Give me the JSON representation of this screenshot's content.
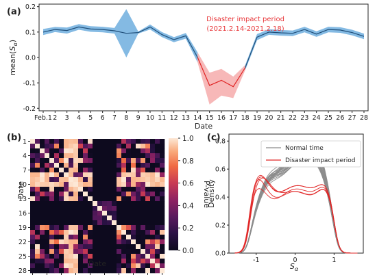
{
  "colors": {
    "normal_line": "#1f4e79",
    "normal_band": "#5ba3d9",
    "disaster_line": "#e02424",
    "disaster_band": "#f4a0a0",
    "density_normal": "#8c8c8c",
    "density_disaster": "#e02424",
    "heat_low": "#0d0a1e",
    "heat_high": "#fde8d6"
  },
  "chart_data": [
    {
      "panel": "(a)",
      "type": "line",
      "xlabel": "Date",
      "ylabel": "mean(Sα)",
      "ylim": [
        -0.21,
        0.21
      ],
      "yticks": [
        "-0.2",
        "-0.1",
        "0.0",
        "0.1",
        "0.2"
      ],
      "ytick_values": [
        -0.2,
        -0.1,
        0.0,
        0.1,
        0.2
      ],
      "categories": [
        "Feb.1",
        "2",
        "3",
        "4",
        "5",
        "6",
        "7",
        "8",
        "9",
        "10",
        "11",
        "12",
        "13",
        "14",
        "15",
        "16",
        "17",
        "18",
        "19",
        "20",
        "21",
        "22",
        "23",
        "24",
        "25",
        "26",
        "27",
        "28"
      ],
      "series": [
        {
          "mean": [
            0.1,
            0.11,
            0.106,
            0.12,
            0.112,
            0.11,
            0.105,
            0.095,
            0.098,
            0.12,
            0.09,
            0.07,
            0.085,
            0.0,
            -0.11,
            -0.09,
            -0.115,
            -0.04,
            0.08,
            0.1,
            0.097,
            0.095,
            0.11,
            0.092,
            0.11,
            0.108,
            0.098,
            0.083
          ],
          "lower": [
            0.088,
            0.1,
            0.094,
            0.109,
            0.101,
            0.099,
            0.094,
            0.0,
            0.094,
            0.11,
            0.08,
            0.06,
            0.074,
            -0.02,
            -0.185,
            -0.15,
            -0.16,
            -0.05,
            0.068,
            0.089,
            0.086,
            0.084,
            0.099,
            0.081,
            0.099,
            0.097,
            0.087,
            0.072
          ],
          "upper": [
            0.112,
            0.12,
            0.118,
            0.131,
            0.123,
            0.121,
            0.116,
            0.19,
            0.102,
            0.13,
            0.1,
            0.08,
            0.096,
            0.02,
            -0.06,
            -0.045,
            -0.075,
            -0.03,
            0.092,
            0.111,
            0.108,
            0.106,
            0.121,
            0.103,
            0.121,
            0.119,
            0.109,
            0.094
          ]
        }
      ],
      "highlight_range": [
        "14",
        "18"
      ],
      "annotation": [
        "Disaster impact period",
        "(2021.2.14-2021.2.18)"
      ]
    },
    {
      "panel": "(b)",
      "type": "heatmap",
      "xlabel": "Date",
      "ylabel": "Date",
      "x_ticks": [
        "1",
        "4",
        "7",
        "10",
        "13",
        "16",
        "19",
        "22",
        "25",
        "28"
      ],
      "y_ticks": [
        "1",
        "4",
        "7",
        "10",
        "13",
        "16",
        "19",
        "22",
        "25",
        "28"
      ],
      "size": 28,
      "colorbar_label": "P-value",
      "colorbar_ticks": [
        "0.0",
        "0.2",
        "0.4",
        "0.6",
        "0.8",
        "1.0"
      ],
      "vmin": 0,
      "vmax": 1,
      "disaster_days": [
        14,
        15,
        16,
        17,
        18
      ]
    },
    {
      "panel": "(c)",
      "type": "line",
      "xlabel": "Sα",
      "ylabel": "Density",
      "xlim": [
        -1.7,
        1.75
      ],
      "ylim": [
        0,
        0.85
      ],
      "xticks": [
        "-1",
        "0",
        "1"
      ],
      "xtick_values": [
        -1,
        0,
        1
      ],
      "yticks": [
        "0.0",
        "0.2",
        "0.4",
        "0.6",
        "0.8"
      ],
      "ytick_values": [
        0,
        0.2,
        0.4,
        0.6,
        0.8
      ],
      "legend": [
        "Normal time",
        "Disaster impact period"
      ],
      "legend_position": "top-right",
      "normal_curve_count": 23,
      "disaster_curve_count": 5
    }
  ],
  "labels": {
    "panel_a": "(a)",
    "panel_b": "(b)",
    "panel_c": "(c)",
    "a_ylabel_main": "mean(",
    "a_ylabel_s": "S",
    "a_ylabel_sub": "α",
    "a_ylabel_end": ")",
    "a_xlabel": "Date",
    "b_xlabel": "Date",
    "b_ylabel": "Date",
    "cb_label": "P-value",
    "c_ylabel": "Density",
    "c_xlabel_s": "S",
    "c_xlabel_sub": "α",
    "ann_line1": "Disaster impact period",
    "ann_line2": "(2021.2.14-2021.2.18)",
    "legend_normal": "Normal time",
    "legend_disaster": "Disaster impact period"
  }
}
